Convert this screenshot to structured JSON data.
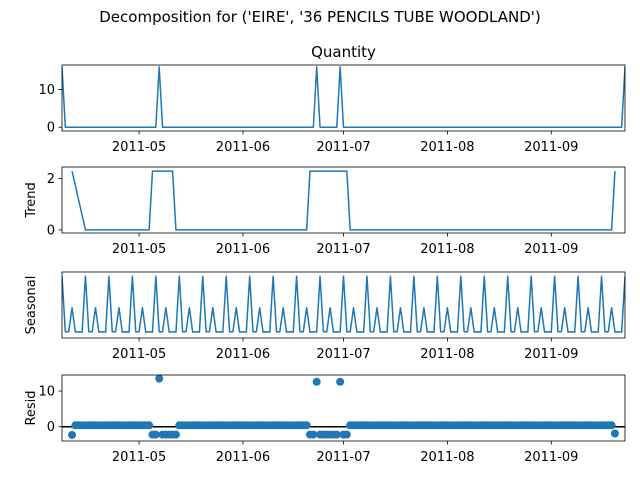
{
  "suptitle": "Decomposition for ('EIRE', '36 PENCILS TUBE WOODLAND')",
  "line_color": "#1f77b4",
  "chart_data": [
    {
      "id": "observed",
      "type": "line",
      "title": "Quantity",
      "ylabel": "",
      "xlim": [
        "2011-04-08",
        "2011-09-23"
      ],
      "ylim": [
        -1,
        16.5
      ],
      "yticks": [
        0,
        10
      ],
      "xticks": [
        "2011-05",
        "2011-06",
        "2011-07",
        "2011-08",
        "2011-09"
      ],
      "points": [
        [
          "2011-04-08",
          16
        ],
        [
          "2011-04-09",
          0
        ],
        [
          "2011-05-06",
          0
        ],
        [
          "2011-05-07",
          16
        ],
        [
          "2011-05-08",
          0
        ],
        [
          "2011-06-22",
          0
        ],
        [
          "2011-06-23",
          16
        ],
        [
          "2011-06-24",
          0
        ],
        [
          "2011-06-29",
          0
        ],
        [
          "2011-06-30",
          16
        ],
        [
          "2011-07-01",
          0
        ],
        [
          "2011-09-22",
          0
        ],
        [
          "2011-09-23",
          16
        ]
      ]
    },
    {
      "id": "trend",
      "type": "line",
      "title": "",
      "ylabel": "Trend",
      "xlim": [
        "2011-04-08",
        "2011-09-23"
      ],
      "ylim": [
        -0.12,
        2.45
      ],
      "yticks": [
        0,
        2
      ],
      "xticks": [
        "2011-05",
        "2011-06",
        "2011-07",
        "2011-08",
        "2011-09"
      ],
      "points": [
        [
          "2011-04-11",
          2.29
        ],
        [
          "2011-04-15",
          0
        ],
        [
          "2011-05-04",
          0
        ],
        [
          "2011-05-05",
          2.29
        ],
        [
          "2011-05-11",
          2.29
        ],
        [
          "2011-05-12",
          0
        ],
        [
          "2011-06-20",
          0
        ],
        [
          "2011-06-21",
          2.29
        ],
        [
          "2011-07-02",
          2.29
        ],
        [
          "2011-07-03",
          0
        ],
        [
          "2011-09-19",
          0
        ],
        [
          "2011-09-20",
          2.29
        ]
      ]
    },
    {
      "id": "seasonal",
      "type": "line",
      "title": "",
      "ylabel": "Seasonal",
      "xlim": [
        "2011-04-08",
        "2011-09-23"
      ],
      "ylim": [
        -0.45,
        1.25
      ],
      "yticks": [],
      "xticks": [
        "2011-05",
        "2011-06",
        "2011-07",
        "2011-08",
        "2011-09"
      ],
      "period_days": 7,
      "pattern": [
        1.14,
        -0.29,
        -0.29,
        0.33,
        -0.3,
        -0.29,
        -0.3
      ],
      "start": "2011-04-08"
    },
    {
      "id": "resid",
      "type": "scatter",
      "title": "",
      "ylabel": "Resid",
      "xlim": [
        "2011-04-08",
        "2011-09-23"
      ],
      "ylim": [
        -4,
        14.5
      ],
      "yticks": [
        0,
        10
      ],
      "xticks": [
        "2011-05",
        "2011-06",
        "2011-07",
        "2011-08",
        "2011-09"
      ],
      "zero_line": true,
      "default_value": 0.4,
      "spikes": [
        [
          "2011-05-07",
          13.5
        ],
        [
          "2011-06-23",
          12.6
        ],
        [
          "2011-06-30",
          12.6
        ]
      ],
      "low_ranges": [
        [
          "2011-05-05",
          "2011-05-12",
          -2.2
        ],
        [
          "2011-06-21",
          "2011-07-02",
          -2.2
        ]
      ],
      "range": [
        "2011-04-12",
        "2011-09-20"
      ],
      "extra": [
        [
          "2011-04-11",
          -2.3
        ],
        [
          "2011-09-20",
          -1.9
        ]
      ]
    }
  ]
}
